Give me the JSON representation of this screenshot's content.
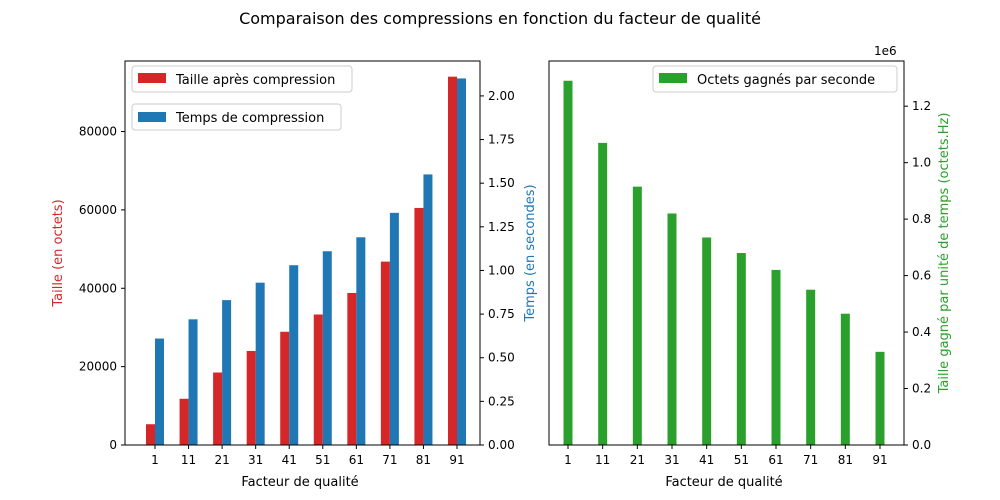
{
  "colors": {
    "size": "#d62728",
    "time": "#1f77b4",
    "gain": "#2ca02c",
    "legend_border": "#cccccc",
    "axis": "#000000"
  },
  "figure": {
    "title": "Comparaison des compressions en fonction du facteur de qualité"
  },
  "chart_data": [
    {
      "type": "bar",
      "title": "",
      "categories": [
        "1",
        "11",
        "21",
        "31",
        "41",
        "51",
        "61",
        "71",
        "81",
        "91"
      ],
      "xlabel": "Facteur de qualité",
      "ylabel": "Taille (en octets)",
      "ylabel_right": "Temps (en secondes)",
      "ylim": [
        0,
        98000
      ],
      "ylim_right": [
        0,
        2.2
      ],
      "yticks": [
        0,
        20000,
        40000,
        60000,
        80000
      ],
      "yticks_right": [
        0.0,
        0.25,
        0.5,
        0.75,
        1.0,
        1.25,
        1.5,
        1.75,
        2.0
      ],
      "yticks_right_labels": [
        "0.00",
        "0.25",
        "0.50",
        "0.75",
        "1.00",
        "1.25",
        "1.50",
        "1.75",
        "2.00"
      ],
      "grid": false,
      "series": [
        {
          "name": "Taille après compression",
          "axis": "left",
          "color": "#d62728",
          "values": [
            5300,
            11800,
            18500,
            24000,
            28900,
            33300,
            38800,
            46800,
            60500,
            94000
          ]
        },
        {
          "name": "Temps de compression",
          "axis": "right",
          "color": "#1f77b4",
          "values": [
            0.61,
            0.72,
            0.83,
            0.93,
            1.03,
            1.11,
            1.19,
            1.33,
            1.55,
            2.1
          ]
        }
      ],
      "legend_placement": "top-left"
    },
    {
      "type": "bar",
      "title": "",
      "categories": [
        "1",
        "11",
        "21",
        "31",
        "41",
        "51",
        "61",
        "71",
        "81",
        "91"
      ],
      "xlabel": "Facteur de qualité",
      "ylabel_right": "Taille gagné par unité de temps (octets.Hz)",
      "y_offset_text": "1e6",
      "ylim": [
        0,
        1.36
      ],
      "yticks": [
        0.0,
        0.2,
        0.4,
        0.6,
        0.8,
        1.0,
        1.2
      ],
      "yticks_labels": [
        "0.0",
        "0.2",
        "0.4",
        "0.6",
        "0.8",
        "1.0",
        "1.2"
      ],
      "grid": false,
      "series": [
        {
          "name": "Octets gagnés par seconde",
          "axis": "right",
          "color": "#2ca02c",
          "values": [
            1.29,
            1.07,
            0.915,
            0.82,
            0.735,
            0.68,
            0.62,
            0.55,
            0.465,
            0.33
          ]
        }
      ],
      "legend_placement": "top-right"
    }
  ]
}
